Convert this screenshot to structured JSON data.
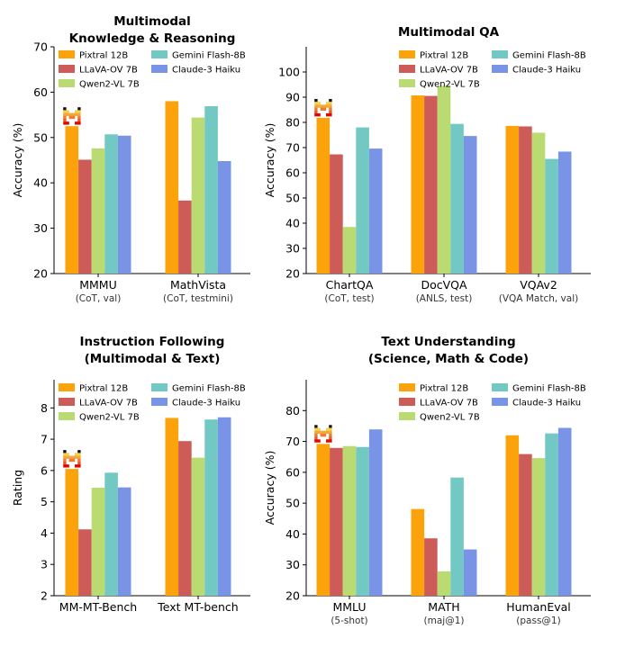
{
  "colors": {
    "Pixtral 12B": "#FCA20B",
    "LLaVA-OV 7B": "#CD5B57",
    "Qwen2-VL 7B": "#BADB71",
    "Gemini Flash-8B": "#72C9C3",
    "Claude-3 Haiku": "#7993E6"
  },
  "icons": {
    "pixtral_marker": "mistral-logo-icon"
  },
  "chart_data": [
    {
      "type": "bar",
      "title": "Multimodal\nKnowledge & Reasoning",
      "ylabel": "Accuracy (%)",
      "ylim": [
        20,
        70
      ],
      "yticks": [
        20,
        30,
        40,
        50,
        60,
        70
      ],
      "categories": [
        "MMMU",
        "MathVista"
      ],
      "subcategories": [
        "(CoT, val)",
        "(CoT, testmini)"
      ],
      "series": [
        {
          "name": "Pixtral 12B",
          "values": [
            52.5,
            58.0
          ]
        },
        {
          "name": "LLaVA-OV 7B",
          "values": [
            45.1,
            36.1
          ]
        },
        {
          "name": "Qwen2-VL 7B",
          "values": [
            47.6,
            54.4
          ]
        },
        {
          "name": "Gemini Flash-8B",
          "values": [
            50.7,
            56.9
          ]
        },
        {
          "name": "Claude-3 Haiku",
          "values": [
            50.4,
            44.8
          ]
        }
      ],
      "legend": "top-right",
      "grid": false
    },
    {
      "type": "bar",
      "title": "Multimodal QA",
      "ylabel": "Accuracy (%)",
      "ylim": [
        20,
        110
      ],
      "yticks": [
        20,
        30,
        40,
        50,
        60,
        70,
        80,
        90,
        100
      ],
      "categories": [
        "ChartQA",
        "DocVQA",
        "VQAv2"
      ],
      "subcategories": [
        "(CoT, test)",
        "(ANLS, test)",
        "(VQA Match, val)"
      ],
      "series": [
        {
          "name": "Pixtral 12B",
          "values": [
            81.8,
            90.7,
            78.6
          ]
        },
        {
          "name": "LLaVA-OV 7B",
          "values": [
            67.3,
            90.5,
            78.4
          ]
        },
        {
          "name": "Qwen2-VL 7B",
          "values": [
            38.5,
            94.5,
            75.9
          ]
        },
        {
          "name": "Gemini Flash-8B",
          "values": [
            78.0,
            79.4,
            65.5
          ]
        },
        {
          "name": "Claude-3 Haiku",
          "values": [
            69.6,
            74.6,
            68.4
          ]
        }
      ],
      "legend": "top-right",
      "grid": false
    },
    {
      "type": "bar",
      "title": "Instruction Following\n(Multimodal & Text)",
      "ylabel": "Rating",
      "ylim": [
        2,
        8.9
      ],
      "yticks": [
        2,
        3,
        4,
        5,
        6,
        7,
        8
      ],
      "categories": [
        "MM-MT-Bench",
        "Text MT-bench"
      ],
      "subcategories": [
        "",
        ""
      ],
      "series": [
        {
          "name": "Pixtral 12B",
          "values": [
            6.05,
            7.68
          ]
        },
        {
          "name": "LLaVA-OV 7B",
          "values": [
            4.12,
            6.94
          ]
        },
        {
          "name": "Qwen2-VL 7B",
          "values": [
            5.45,
            6.41
          ]
        },
        {
          "name": "Gemini Flash-8B",
          "values": [
            5.93,
            7.63
          ]
        },
        {
          "name": "Claude-3 Haiku",
          "values": [
            5.46,
            7.7
          ]
        }
      ],
      "legend": "top-right",
      "grid": false
    },
    {
      "type": "bar",
      "title": "Text Understanding\n(Science, Math & Code)",
      "ylabel": "Accuracy (%)",
      "ylim": [
        20,
        90
      ],
      "yticks": [
        20,
        30,
        40,
        50,
        60,
        70,
        80
      ],
      "categories": [
        "MMLU",
        "MATH",
        "HumanEval"
      ],
      "subcategories": [
        "(5-shot)",
        "(maj@1)",
        "(pass@1)"
      ],
      "series": [
        {
          "name": "Pixtral 12B",
          "values": [
            69.2,
            48.1,
            72.0
          ]
        },
        {
          "name": "LLaVA-OV 7B",
          "values": [
            67.9,
            38.6,
            65.9
          ]
        },
        {
          "name": "Qwen2-VL 7B",
          "values": [
            68.5,
            27.9,
            64.6
          ]
        },
        {
          "name": "Gemini Flash-8B",
          "values": [
            68.2,
            58.3,
            72.6
          ]
        },
        {
          "name": "Claude-3 Haiku",
          "values": [
            73.9,
            35.0,
            74.4
          ]
        }
      ],
      "legend": "top-right",
      "grid": false
    }
  ]
}
